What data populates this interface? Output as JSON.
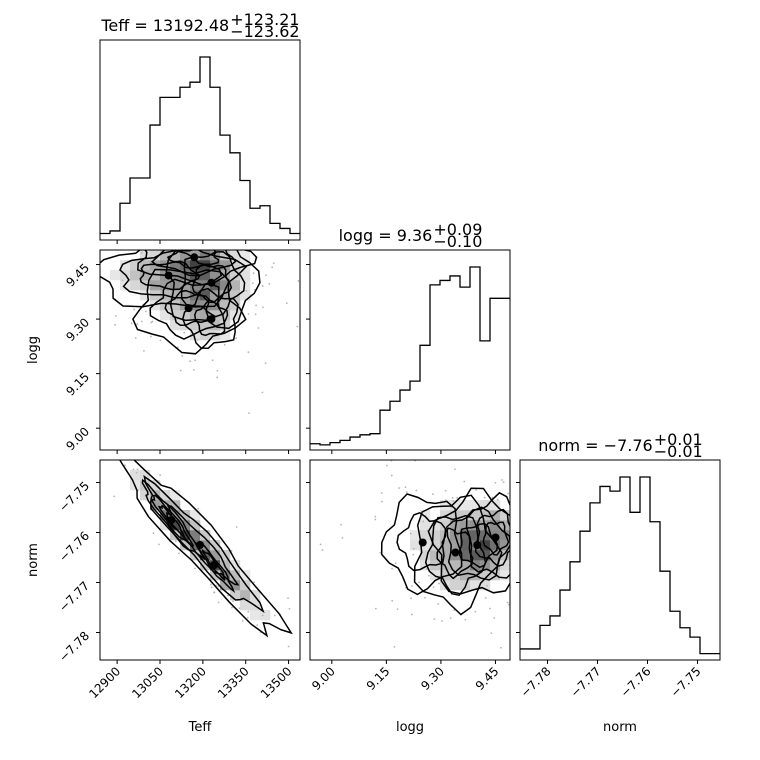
{
  "chart_data": {
    "type": "corner",
    "parameters": [
      "Teff",
      "logg",
      "norm"
    ],
    "titles": [
      {
        "base": "Teff = 13192.48",
        "sup": "+123.21",
        "sub": "−123.62"
      },
      {
        "base": "logg = 9.36",
        "sup": "+0.09",
        "sub": "−0.10"
      },
      {
        "base": "norm = −7.76",
        "sup": "+0.01",
        "sub": "−0.01"
      }
    ],
    "axis_labels": {
      "Teff": "Teff",
      "logg": "logg",
      "norm": "norm"
    },
    "ranges": {
      "Teff": [
        12840,
        13540
      ],
      "logg": [
        8.94,
        9.49
      ],
      "norm": [
        -7.7855,
        -7.7455
      ]
    },
    "ticks": {
      "Teff": {
        "values": [
          12900,
          13050,
          13200,
          13350,
          13500
        ],
        "labels": [
          "12900",
          "13050",
          "13200",
          "13350",
          "13500"
        ]
      },
      "logg": {
        "values": [
          9.0,
          9.15,
          9.3,
          9.45
        ],
        "labels": [
          "9.00",
          "9.15",
          "9.30",
          "9.45"
        ]
      },
      "norm": {
        "values": [
          -7.78,
          -7.77,
          -7.76,
          -7.75
        ],
        "labels": [
          "−7.78",
          "−7.77",
          "−7.76",
          "−7.75"
        ]
      }
    },
    "histograms": {
      "Teff": {
        "bin_start": 12840,
        "bin_width": 35,
        "counts": [
          1,
          2,
          13,
          23,
          23,
          44,
          55,
          55,
          59,
          61,
          71,
          59,
          40,
          33,
          22,
          11,
          12,
          5,
          3,
          1
        ]
      },
      "logg": {
        "bin_start": 8.94,
        "bin_width": 0.0275,
        "counts": [
          1,
          0.5,
          1.5,
          2.5,
          4,
          5,
          5.5,
          16,
          20,
          25,
          29,
          45,
          72,
          74,
          76,
          71,
          80,
          47,
          66,
          66
        ]
      },
      "norm": {
        "bin_start": -7.7855,
        "bin_width": 0.002,
        "counts": [
          3,
          3,
          13,
          17,
          28,
          40,
          53,
          65,
          72,
          70,
          76,
          61,
          76,
          57,
          36,
          19,
          12,
          8,
          1,
          1
        ]
      }
    },
    "density": [
      {
        "x": "Teff",
        "y": "logg",
        "centers": [
          {
            "x": 13080,
            "y": 9.42,
            "sx": 110,
            "sy": 0.04,
            "w": 1.0
          },
          {
            "x": 13230,
            "y": 9.4,
            "sx": 70,
            "sy": 0.055,
            "w": 1.1
          },
          {
            "x": 13170,
            "y": 9.47,
            "sx": 90,
            "sy": 0.03,
            "w": 0.8
          },
          {
            "x": 13150,
            "y": 9.33,
            "sx": 80,
            "sy": 0.05,
            "w": 0.5
          },
          {
            "x": 13230,
            "y": 9.3,
            "sx": 60,
            "sy": 0.05,
            "w": 0.4
          }
        ]
      },
      {
        "x": "Teff",
        "y": "norm",
        "rho": -0.95,
        "centers": [
          {
            "x": 13190,
            "y": -7.7625,
            "sx": 130,
            "sy": 0.0082,
            "w": 1.0
          },
          {
            "x": 13090,
            "y": -7.7575,
            "sx": 45,
            "sy": 0.0032,
            "w": 0.6
          },
          {
            "x": 13240,
            "y": -7.7665,
            "sx": 40,
            "sy": 0.003,
            "w": 0.4
          }
        ]
      },
      {
        "x": "logg",
        "y": "norm",
        "centers": [
          {
            "x": 9.4,
            "y": -7.7625,
            "sx": 0.055,
            "sy": 0.0045,
            "w": 1.0
          },
          {
            "x": 9.45,
            "y": -7.761,
            "sx": 0.035,
            "sy": 0.0035,
            "w": 0.8
          },
          {
            "x": 9.34,
            "y": -7.764,
            "sx": 0.05,
            "sy": 0.005,
            "w": 0.5
          },
          {
            "x": 9.25,
            "y": -7.762,
            "sx": 0.07,
            "sy": 0.006,
            "w": 0.2
          }
        ]
      }
    ],
    "grid": false
  }
}
